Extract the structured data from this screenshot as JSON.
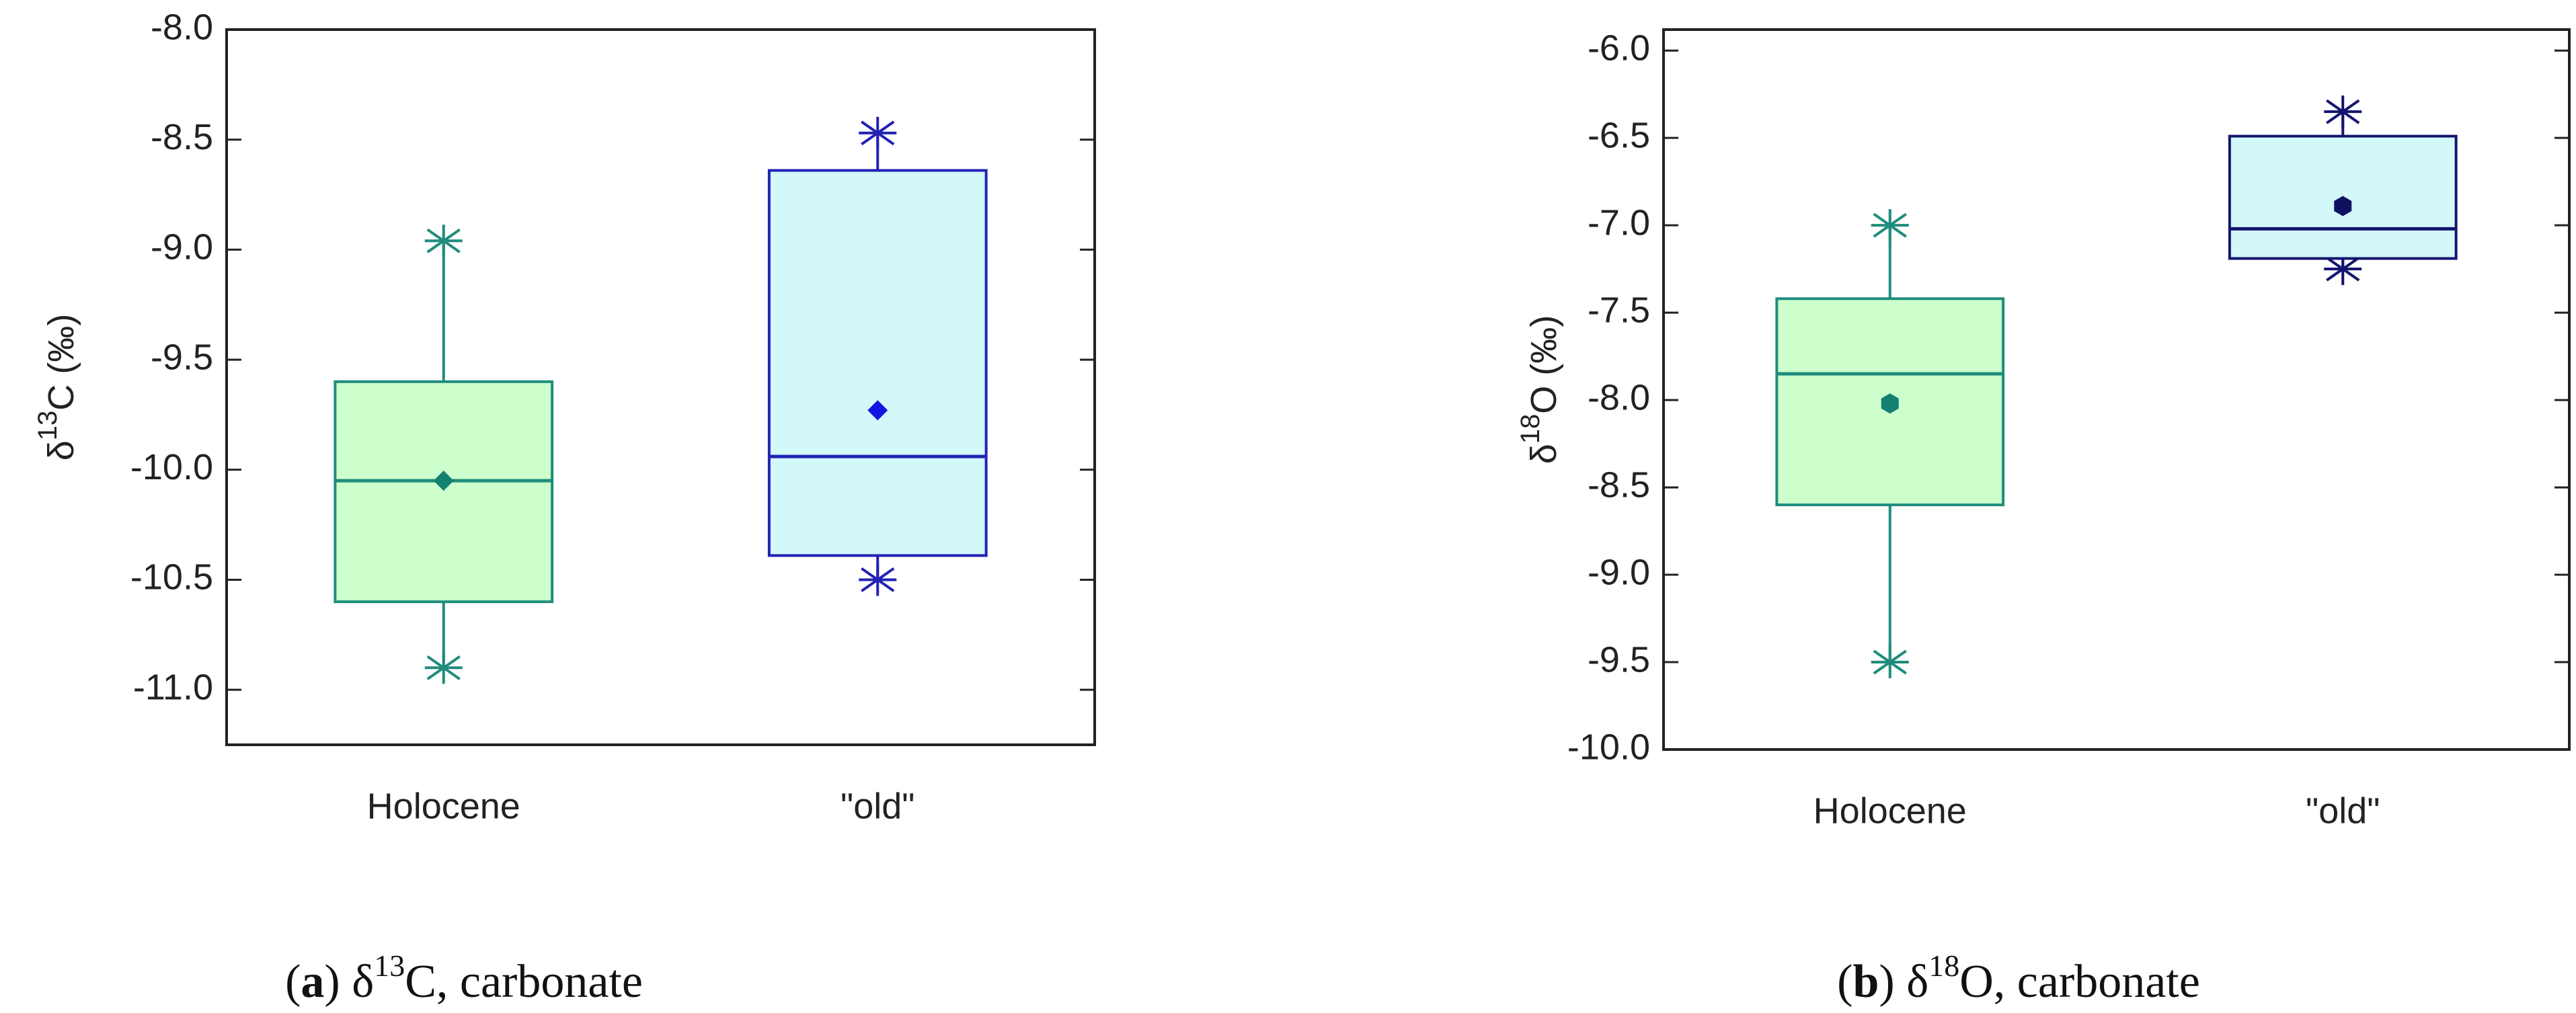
{
  "chart_data": [
    {
      "type": "box",
      "y_label": [
        "δ",
        "13",
        "C (‰)"
      ],
      "caption": [
        "(",
        "a",
        ") δ",
        "13",
        "C, carbonate"
      ],
      "categories": [
        "Holocene",
        "\"old\""
      ],
      "stats": {
        "max": [
          -8.96,
          -8.47
        ],
        "q3": [
          -9.6,
          -8.64
        ],
        "median": [
          -10.05,
          -9.94
        ],
        "q1": [
          -10.6,
          -10.39
        ],
        "min": [
          -10.9,
          -10.5
        ],
        "mean": [
          -10.05,
          -9.73
        ]
      },
      "fill_colors": [
        "#ccffcc",
        "#d2f8fa"
      ],
      "line_colors": [
        "#1f8c7c",
        "#2222b4"
      ],
      "mean_colors": [
        "#138070",
        "#1414e0"
      ],
      "mean_markers": [
        "diamond",
        "diamond"
      ],
      "ylim": [
        -11.25,
        -8.0
      ],
      "yticks": [
        {
          "value": -11,
          "label": "-11.0"
        },
        {
          "value": -10.5,
          "label": "-10.5"
        },
        {
          "value": -10,
          "label": "-10.0"
        },
        {
          "value": -9.5,
          "label": "-9.5"
        },
        {
          "value": -9,
          "label": "-9.0"
        },
        {
          "value": -8.5,
          "label": "-8.5"
        },
        {
          "value": -8,
          "label": "-8.0"
        }
      ]
    },
    {
      "type": "box",
      "y_label": [
        "δ",
        "18",
        "O (‰)"
      ],
      "caption": [
        "(",
        "b",
        ") δ",
        "18",
        "O, carbonate"
      ],
      "categories": [
        "Holocene",
        "\"old\""
      ],
      "stats": {
        "max": [
          -7.0,
          -6.35
        ],
        "q3": [
          -7.42,
          -6.49
        ],
        "median": [
          -7.85,
          -7.02
        ],
        "q1": [
          -8.6,
          -7.19
        ],
        "min": [
          -9.5,
          -7.25
        ],
        "mean": [
          -8.02,
          -6.89
        ]
      },
      "fill_colors": [
        "#ccffcc",
        "#d2f8fa"
      ],
      "line_colors": [
        "#1f8c7c",
        "#141470"
      ],
      "mean_colors": [
        "#138070",
        "#101060"
      ],
      "mean_markers": [
        "hexagon",
        "hexagon"
      ],
      "ylim": [
        -10.0,
        -5.88
      ],
      "yticks": [
        {
          "value": -10,
          "label": "-10.0"
        },
        {
          "value": -9.5,
          "label": "-9.5"
        },
        {
          "value": -9,
          "label": "-9.0"
        },
        {
          "value": -8.5,
          "label": "-8.5"
        },
        {
          "value": -8,
          "label": "-8.0"
        },
        {
          "value": -7.5,
          "label": "-7.5"
        },
        {
          "value": -7,
          "label": "-7.0"
        },
        {
          "value": -6.5,
          "label": "-6.5"
        },
        {
          "value": -6,
          "label": "-6.0"
        }
      ]
    }
  ]
}
